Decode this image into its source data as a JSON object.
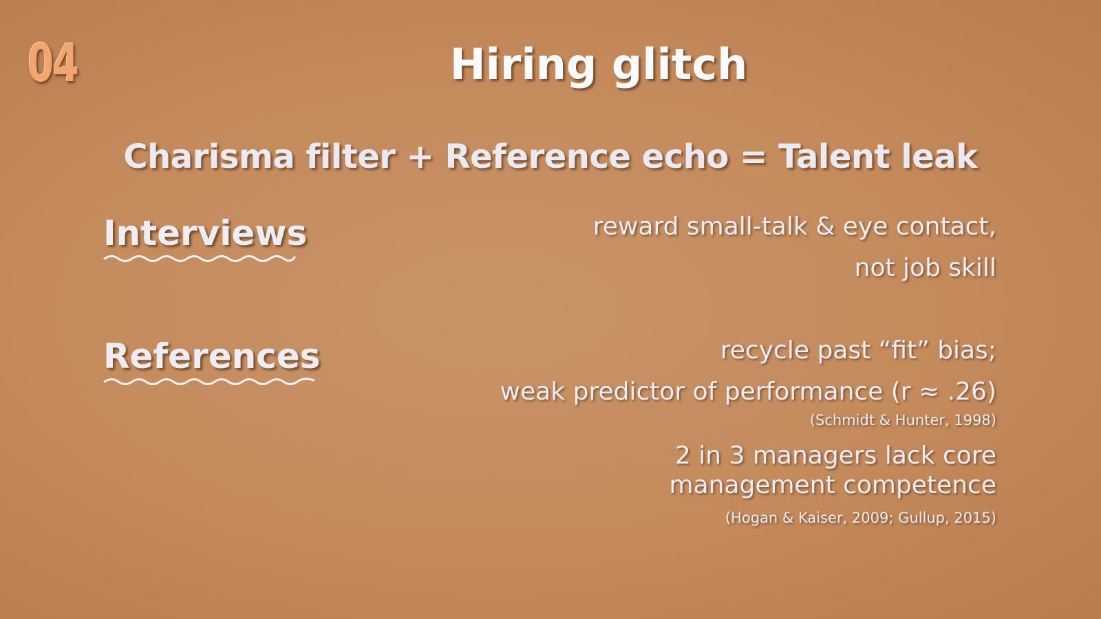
{
  "slide": {
    "number": "04",
    "title": "Hiring glitch",
    "subtitle": "Charisma filter + Reference echo = Talent leak"
  },
  "sections": {
    "interviews": {
      "label": "Interviews",
      "lines": [
        "reward small-talk & eye contact,",
        "not job skill"
      ]
    },
    "references": {
      "label": "References",
      "line1": "recycle past “fit” bias;",
      "line2": "weak predictor of performance (r ≈ .26)",
      "citation1": "(Schmidt & Hunter, 1998)",
      "line3": "2 in 3 managers lack core",
      "line4": "management competence",
      "citation2": "(Hogan & Kaiser, 2009; Gullup, 2015)"
    }
  },
  "colors": {
    "background": "#c48a5c",
    "slide_number": "#f2a56e",
    "text": "#f3f1f2"
  }
}
